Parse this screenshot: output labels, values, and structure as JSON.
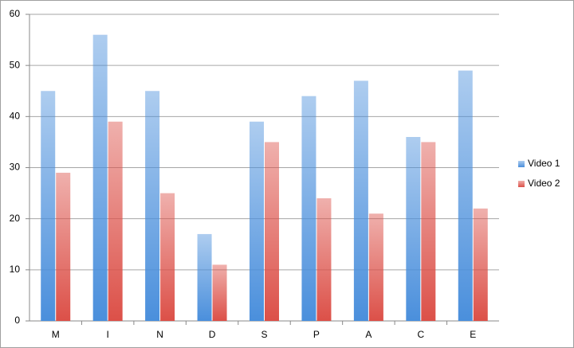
{
  "chart_data": {
    "type": "grouped-bar",
    "categories": [
      "M",
      "I",
      "N",
      "D",
      "S",
      "P",
      "A",
      "C",
      "E"
    ],
    "series": [
      {
        "name": "Video 1",
        "color": "#4a8fdc",
        "values": [
          45,
          56,
          45,
          17,
          39,
          44,
          47,
          36,
          49
        ]
      },
      {
        "name": "Video 2",
        "color": "#dc5048",
        "values": [
          29,
          39,
          25,
          11,
          35,
          24,
          21,
          35,
          22
        ]
      }
    ],
    "ylim": [
      0,
      60
    ],
    "yticks": [
      0,
      10,
      20,
      30,
      40,
      50,
      60
    ],
    "grid": true,
    "legend": "right"
  }
}
